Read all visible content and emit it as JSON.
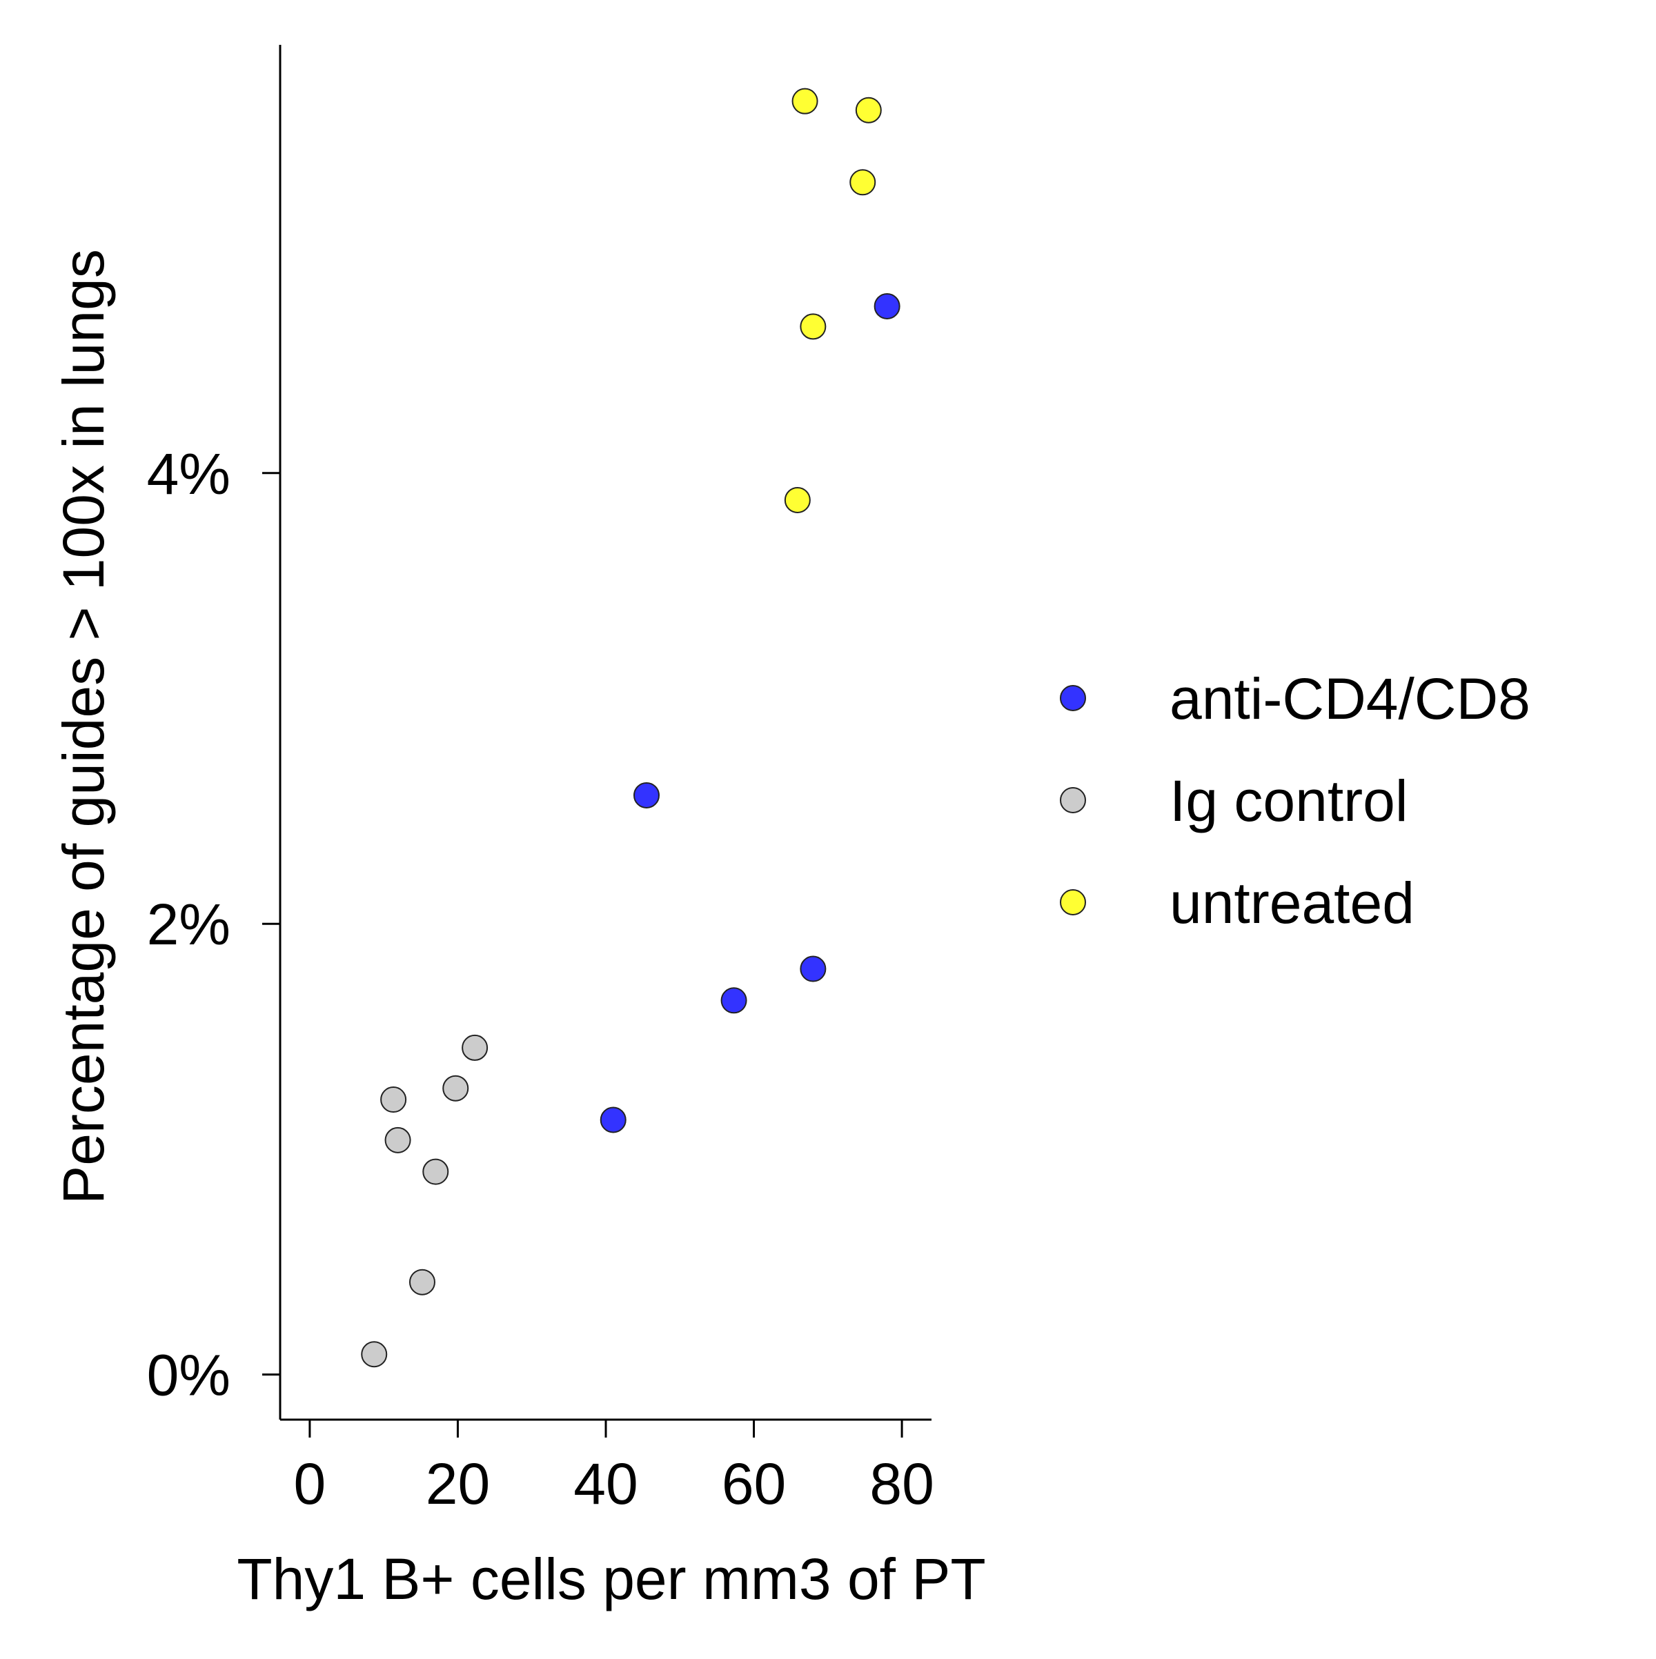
{
  "chart_data": {
    "type": "scatter",
    "xlabel": "Thy1 B+ cells per mm3 of PT",
    "ylabel": "Percentage of guides > 100x in lungs",
    "xlim": [
      -4,
      84
    ],
    "ylim": [
      -0.2,
      5.9
    ],
    "x_ticks": [
      0,
      20,
      40,
      60,
      80
    ],
    "x_tick_labels": [
      "0",
      "20",
      "40",
      "60",
      "80"
    ],
    "y_ticks": [
      0,
      2,
      4
    ],
    "y_tick_labels": [
      "0%",
      "2%",
      "4%"
    ],
    "grid": false,
    "legend_position": "right",
    "series": [
      {
        "name": "anti-CD4/CD8",
        "color": "#3333ff",
        "points": [
          {
            "x": 41,
            "y": 1.13
          },
          {
            "x": 45.5,
            "y": 2.57
          },
          {
            "x": 57.3,
            "y": 1.66
          },
          {
            "x": 68,
            "y": 1.8
          },
          {
            "x": 78,
            "y": 4.74
          }
        ]
      },
      {
        "name": "Ig control",
        "color": "#cccccc",
        "points": [
          {
            "x": 8.7,
            "y": 0.09
          },
          {
            "x": 11.3,
            "y": 1.22
          },
          {
            "x": 11.9,
            "y": 1.04
          },
          {
            "x": 15.2,
            "y": 0.41
          },
          {
            "x": 17,
            "y": 0.9
          },
          {
            "x": 19.7,
            "y": 1.27
          },
          {
            "x": 22.3,
            "y": 1.45
          }
        ]
      },
      {
        "name": "untreated",
        "color": "#ffff33",
        "points": [
          {
            "x": 65.9,
            "y": 3.88
          },
          {
            "x": 66.9,
            "y": 5.65
          },
          {
            "x": 68,
            "y": 4.65
          },
          {
            "x": 74.7,
            "y": 5.29
          },
          {
            "x": 75.5,
            "y": 5.61
          }
        ]
      }
    ]
  }
}
